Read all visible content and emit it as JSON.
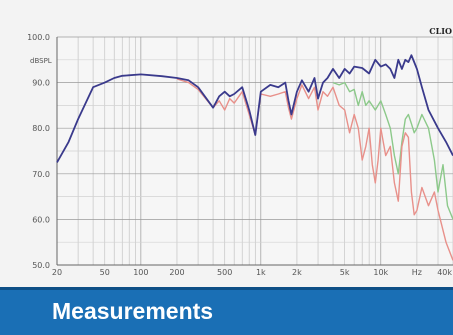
{
  "chart_data": {
    "type": "line",
    "title": "",
    "brand_label": "CLIO",
    "y_unit_label": "dBSPL",
    "xlabel": "",
    "ylabel": "",
    "x_scale": "log",
    "xlim": [
      20,
      40000
    ],
    "ylim": [
      50,
      100
    ],
    "grid": true,
    "y_ticks": [
      {
        "value": 100,
        "label": "100.0"
      },
      {
        "value": 90,
        "label": "90.0"
      },
      {
        "value": 80,
        "label": "80.0"
      },
      {
        "value": 70,
        "label": "70.0"
      },
      {
        "value": 60,
        "label": "60.0"
      },
      {
        "value": 50,
        "label": "50.0"
      }
    ],
    "x_ticks": [
      {
        "value": 20,
        "label": "20"
      },
      {
        "value": 50,
        "label": "50"
      },
      {
        "value": 100,
        "label": "100"
      },
      {
        "value": 200,
        "label": "200"
      },
      {
        "value": 500,
        "label": "500"
      },
      {
        "value": 1000,
        "label": "1k"
      },
      {
        "value": 2000,
        "label": "2k"
      },
      {
        "value": 5000,
        "label": "5k"
      },
      {
        "value": 10000,
        "label": "10k"
      },
      {
        "value": 20000,
        "label": "Hz"
      },
      {
        "value": 40000,
        "label": "40k"
      }
    ],
    "series": [
      {
        "color": "#3a3a8c",
        "points": [
          [
            20,
            72.5
          ],
          [
            25,
            77
          ],
          [
            30,
            82
          ],
          [
            40,
            89
          ],
          [
            50,
            90
          ],
          [
            60,
            91
          ],
          [
            70,
            91.5
          ],
          [
            100,
            91.8
          ],
          [
            150,
            91.4
          ],
          [
            200,
            91
          ],
          [
            250,
            90.5
          ],
          [
            300,
            89
          ],
          [
            400,
            84.5
          ],
          [
            450,
            87
          ],
          [
            500,
            88
          ],
          [
            550,
            87
          ],
          [
            600,
            87.5
          ],
          [
            700,
            89
          ],
          [
            800,
            84
          ],
          [
            900,
            78.5
          ],
          [
            1000,
            88
          ],
          [
            1200,
            89.5
          ],
          [
            1400,
            89
          ],
          [
            1600,
            90
          ],
          [
            1700,
            86
          ],
          [
            1800,
            83
          ],
          [
            2000,
            88
          ],
          [
            2200,
            90.5
          ],
          [
            2500,
            88
          ],
          [
            2800,
            91
          ],
          [
            3000,
            86.5
          ],
          [
            3300,
            90
          ],
          [
            3600,
            91
          ],
          [
            4000,
            93
          ],
          [
            4500,
            91
          ],
          [
            5000,
            93
          ],
          [
            5500,
            92
          ],
          [
            6000,
            93.5
          ],
          [
            7000,
            93.2
          ],
          [
            8000,
            92
          ],
          [
            9000,
            95
          ],
          [
            10000,
            93.5
          ],
          [
            11000,
            94
          ],
          [
            12000,
            93
          ],
          [
            13000,
            91
          ],
          [
            14000,
            95
          ],
          [
            15000,
            93
          ],
          [
            16000,
            95
          ],
          [
            17000,
            94.5
          ],
          [
            18000,
            96
          ],
          [
            19000,
            94.5
          ],
          [
            20000,
            93
          ],
          [
            22000,
            89
          ],
          [
            25000,
            84
          ],
          [
            30000,
            80
          ],
          [
            35000,
            77
          ],
          [
            40000,
            74
          ]
        ]
      },
      {
        "color": "#e8908a",
        "points": [
          [
            200,
            90.8
          ],
          [
            250,
            90
          ],
          [
            300,
            88.5
          ],
          [
            400,
            84.5
          ],
          [
            450,
            86
          ],
          [
            500,
            84
          ],
          [
            550,
            86.5
          ],
          [
            600,
            85.5
          ],
          [
            700,
            88
          ],
          [
            800,
            83
          ],
          [
            900,
            78.5
          ],
          [
            1000,
            87.5
          ],
          [
            1200,
            87
          ],
          [
            1400,
            87.5
          ],
          [
            1600,
            88
          ],
          [
            1700,
            84.5
          ],
          [
            1800,
            82
          ],
          [
            2000,
            86.5
          ],
          [
            2200,
            89.5
          ],
          [
            2500,
            86.5
          ],
          [
            2800,
            89
          ],
          [
            3000,
            84
          ],
          [
            3300,
            88
          ],
          [
            3600,
            87
          ],
          [
            4000,
            89
          ],
          [
            4500,
            85
          ],
          [
            5000,
            84
          ],
          [
            5500,
            79
          ],
          [
            6000,
            83
          ],
          [
            6500,
            80
          ],
          [
            7000,
            73
          ],
          [
            7500,
            76
          ],
          [
            8000,
            80
          ],
          [
            8500,
            72
          ],
          [
            9000,
            68
          ],
          [
            9500,
            73
          ],
          [
            10000,
            80
          ],
          [
            11000,
            74
          ],
          [
            12000,
            76
          ],
          [
            13000,
            68
          ],
          [
            14000,
            64
          ],
          [
            15000,
            76
          ],
          [
            16000,
            79
          ],
          [
            17000,
            78
          ],
          [
            18000,
            66
          ],
          [
            19000,
            61
          ],
          [
            20000,
            62
          ],
          [
            22000,
            67
          ],
          [
            25000,
            63
          ],
          [
            28000,
            66
          ],
          [
            30000,
            62
          ],
          [
            35000,
            55
          ],
          [
            40000,
            51
          ]
        ]
      },
      {
        "color": "#8cc98a",
        "points": [
          [
            4000,
            90
          ],
          [
            4500,
            89.5
          ],
          [
            5000,
            90
          ],
          [
            5500,
            88
          ],
          [
            6000,
            88.5
          ],
          [
            6500,
            85
          ],
          [
            7000,
            88
          ],
          [
            7500,
            85
          ],
          [
            8000,
            86
          ],
          [
            9000,
            84
          ],
          [
            10000,
            86
          ],
          [
            11000,
            83
          ],
          [
            12000,
            80
          ],
          [
            13000,
            74
          ],
          [
            14000,
            70
          ],
          [
            15000,
            77
          ],
          [
            16000,
            82
          ],
          [
            17000,
            83
          ],
          [
            18000,
            81
          ],
          [
            19000,
            79
          ],
          [
            20000,
            80
          ],
          [
            22000,
            83
          ],
          [
            25000,
            80
          ],
          [
            28000,
            73
          ],
          [
            30000,
            66
          ],
          [
            33000,
            72
          ],
          [
            36000,
            63
          ],
          [
            40000,
            60
          ]
        ]
      }
    ]
  },
  "banner": {
    "title": "Measurements",
    "color": "#1a6fb5"
  }
}
